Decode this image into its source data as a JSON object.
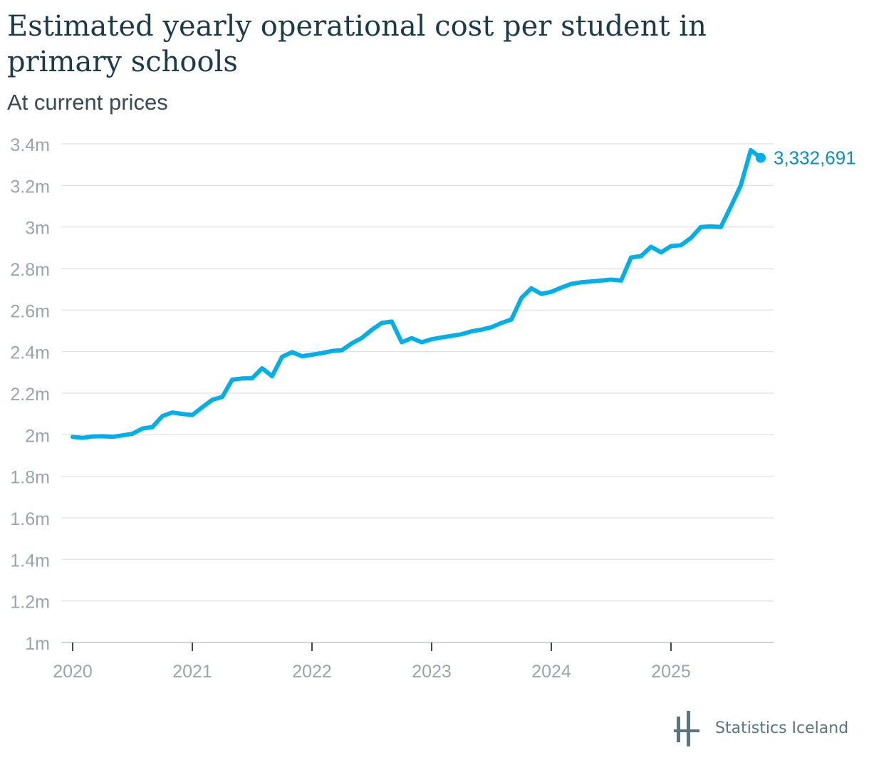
{
  "chart_data": {
    "type": "line",
    "title": "Estimated yearly operational cost per student in primary schools",
    "subtitle": "At current prices",
    "y_ticks": [
      {
        "value": 1000000,
        "label": "1m"
      },
      {
        "value": 1200000,
        "label": "1.2m"
      },
      {
        "value": 1400000,
        "label": "1.4m"
      },
      {
        "value": 1600000,
        "label": "1.6m"
      },
      {
        "value": 1800000,
        "label": "1.8m"
      },
      {
        "value": 2000000,
        "label": "2m"
      },
      {
        "value": 2200000,
        "label": "2.2m"
      },
      {
        "value": 2400000,
        "label": "2.4m"
      },
      {
        "value": 2600000,
        "label": "2.6m"
      },
      {
        "value": 2800000,
        "label": "2.8m"
      },
      {
        "value": 3000000,
        "label": "3m"
      },
      {
        "value": 3200000,
        "label": "3.2m"
      },
      {
        "value": 3400000,
        "label": "3.4m"
      }
    ],
    "x_ticks": [
      {
        "value": "2020-01",
        "label": "2020"
      },
      {
        "value": "2021-01",
        "label": "2021"
      },
      {
        "value": "2022-01",
        "label": "2022"
      },
      {
        "value": "2023-01",
        "label": "2023"
      },
      {
        "value": "2024-01",
        "label": "2024"
      },
      {
        "value": "2025-01",
        "label": "2025"
      }
    ],
    "xlim": [
      "2020-01",
      "2025-12"
    ],
    "ylim": [
      1000000,
      3400000
    ],
    "grid": true,
    "color": "#00aee8",
    "last_label": "3,332,691",
    "x": [
      "2020-01",
      "2020-02",
      "2020-03",
      "2020-04",
      "2020-05",
      "2020-06",
      "2020-07",
      "2020-08",
      "2020-09",
      "2020-10",
      "2020-11",
      "2020-12",
      "2021-01",
      "2021-02",
      "2021-03",
      "2021-04",
      "2021-05",
      "2021-06",
      "2021-07",
      "2021-08",
      "2021-09",
      "2021-10",
      "2021-11",
      "2021-12",
      "2022-01",
      "2022-02",
      "2022-03",
      "2022-04",
      "2022-05",
      "2022-06",
      "2022-07",
      "2022-08",
      "2022-09",
      "2022-10",
      "2022-11",
      "2022-12",
      "2023-01",
      "2023-02",
      "2023-03",
      "2023-04",
      "2023-05",
      "2023-06",
      "2023-07",
      "2023-08",
      "2023-09",
      "2023-10",
      "2023-11",
      "2023-12",
      "2024-01",
      "2024-02",
      "2024-03",
      "2024-04",
      "2024-05",
      "2024-06",
      "2024-07",
      "2024-08",
      "2024-09",
      "2024-10",
      "2024-11",
      "2024-12",
      "2025-01",
      "2025-02",
      "2025-03",
      "2025-04",
      "2025-05",
      "2025-06",
      "2025-07",
      "2025-08",
      "2025-09",
      "2025-10"
    ],
    "values": [
      1990000,
      1985000,
      1992000,
      1993000,
      1990000,
      1997000,
      2005000,
      2030000,
      2037000,
      2090000,
      2107000,
      2100000,
      2095000,
      2132000,
      2168000,
      2182000,
      2265000,
      2271000,
      2272000,
      2320000,
      2282000,
      2375000,
      2398000,
      2378000,
      2385000,
      2393000,
      2403000,
      2407000,
      2440000,
      2466000,
      2505000,
      2538000,
      2545000,
      2445000,
      2465000,
      2445000,
      2460000,
      2468000,
      2476000,
      2484000,
      2498000,
      2506000,
      2518000,
      2538000,
      2555000,
      2658000,
      2705000,
      2678000,
      2688000,
      2708000,
      2726000,
      2734000,
      2738000,
      2742000,
      2747000,
      2742000,
      2853000,
      2860000,
      2905000,
      2878000,
      2908000,
      2912000,
      2947000,
      3000000,
      3003000,
      3000000,
      3098000,
      3200000,
      3370000,
      3332691
    ]
  },
  "brand": {
    "name": "Statistics Iceland",
    "color": "#5a7480"
  }
}
